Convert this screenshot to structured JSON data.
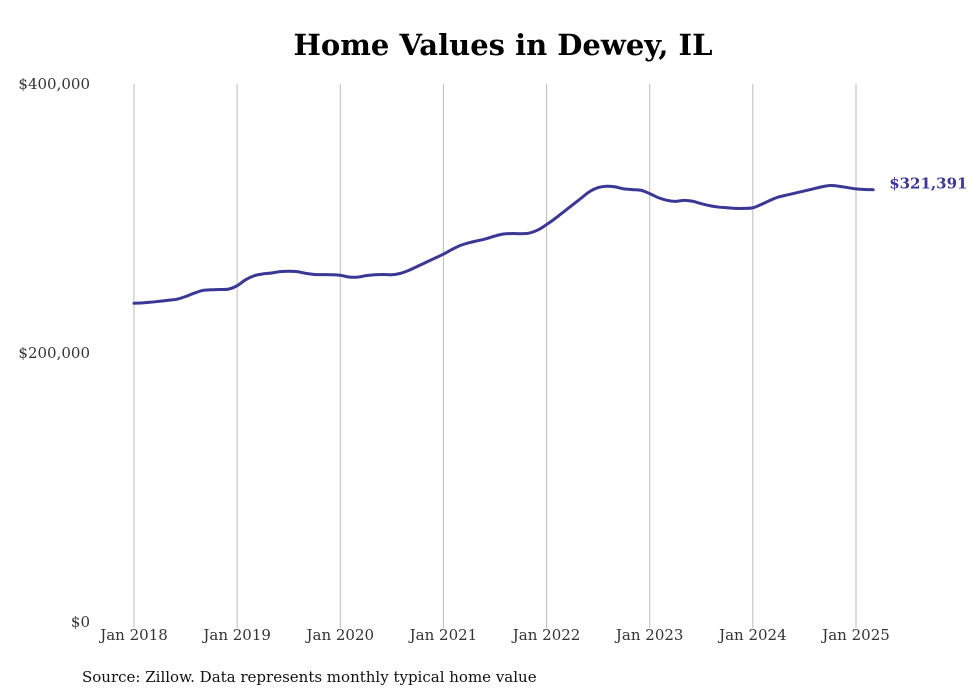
{
  "chart_data": {
    "type": "line",
    "title": "Home Values in Dewey, IL",
    "xlabel": "",
    "ylabel": "",
    "ylim": [
      0,
      400000
    ],
    "yticks": [
      0,
      200000,
      400000
    ],
    "ytick_labels": [
      "$0",
      "$200,000",
      "$400,000"
    ],
    "xlim": [
      "2018-01",
      "2025-03"
    ],
    "xticks": [
      "2018-01",
      "2019-01",
      "2020-01",
      "2021-01",
      "2022-01",
      "2023-01",
      "2024-01",
      "2025-01"
    ],
    "xtick_labels": [
      "Jan 2018",
      "Jan 2019",
      "Jan 2020",
      "Jan 2021",
      "Jan 2022",
      "Jan 2023",
      "Jan 2024",
      "Jan 2025"
    ],
    "grid": "vertical lines at x ticks",
    "line_color": "#3b3794",
    "grid_color": "#bbbbbb",
    "end_label": "$321,391",
    "series": [
      {
        "x": [
          "2018-01",
          "2018-02",
          "2018-03",
          "2018-04",
          "2018-05",
          "2018-06",
          "2018-07",
          "2018-08",
          "2018-09",
          "2018-10",
          "2018-11",
          "2018-12",
          "2019-01",
          "2019-02",
          "2019-03",
          "2019-04",
          "2019-05",
          "2019-06",
          "2019-07",
          "2019-08",
          "2019-09",
          "2019-10",
          "2019-11",
          "2019-12",
          "2020-01",
          "2020-02",
          "2020-03",
          "2020-04",
          "2020-05",
          "2020-06",
          "2020-07",
          "2020-08",
          "2020-09",
          "2020-10",
          "2020-11",
          "2020-12",
          "2021-01",
          "2021-02",
          "2021-03",
          "2021-04",
          "2021-05",
          "2021-06",
          "2021-07",
          "2021-08",
          "2021-09",
          "2021-10",
          "2021-11",
          "2021-12",
          "2022-01",
          "2022-02",
          "2022-03",
          "2022-04",
          "2022-05",
          "2022-06",
          "2022-07",
          "2022-08",
          "2022-09",
          "2022-10",
          "2022-11",
          "2022-12",
          "2023-01",
          "2023-02",
          "2023-03",
          "2023-04",
          "2023-05",
          "2023-06",
          "2023-07",
          "2023-08",
          "2023-09",
          "2023-10",
          "2023-11",
          "2023-12",
          "2024-01",
          "2024-02",
          "2024-03",
          "2024-04",
          "2024-05",
          "2024-06",
          "2024-07",
          "2024-08",
          "2024-09",
          "2024-10",
          "2024-11",
          "2024-12",
          "2025-01",
          "2025-02",
          "2025-03"
        ],
        "values": [
          237000,
          237300,
          237800,
          238500,
          239200,
          240000,
          242000,
          244500,
          246500,
          247000,
          247200,
          247500,
          250000,
          254500,
          257500,
          258800,
          259500,
          260500,
          260800,
          260500,
          259200,
          258400,
          258300,
          258200,
          257800,
          256500,
          256400,
          257500,
          258200,
          258400,
          258200,
          259200,
          261500,
          264500,
          267500,
          270500,
          273500,
          277000,
          280000,
          282000,
          283500,
          285000,
          287000,
          288500,
          288800,
          288700,
          289200,
          291500,
          295500,
          300000,
          305000,
          310000,
          315000,
          320000,
          323000,
          324000,
          323500,
          322000,
          321500,
          321000,
          318500,
          315500,
          313500,
          312700,
          313500,
          312800,
          311000,
          309500,
          308500,
          308000,
          307500,
          307500,
          308000,
          310500,
          313500,
          316000,
          317500,
          319000,
          320500,
          322000,
          323500,
          324500,
          324000,
          323000,
          322000,
          321600,
          321391
        ]
      }
    ]
  },
  "source_note": "Source: Zillow. Data represents monthly typical home value"
}
